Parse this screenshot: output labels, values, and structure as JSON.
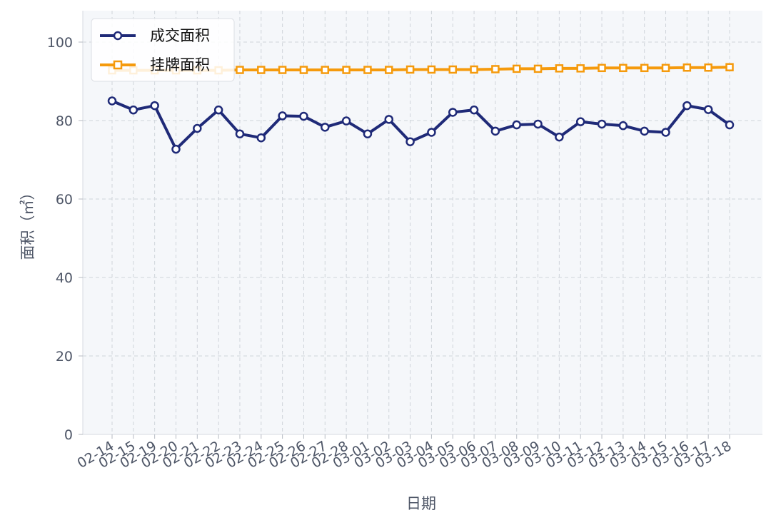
{
  "chart_data": {
    "type": "line",
    "x": [
      "02-14",
      "02-15",
      "02-19",
      "02-20",
      "02-21",
      "02-22",
      "02-23",
      "02-24",
      "02-25",
      "02-26",
      "02-27",
      "02-28",
      "03-01",
      "03-02",
      "03-03",
      "03-04",
      "03-05",
      "03-06",
      "03-07",
      "03-08",
      "03-09",
      "03-10",
      "03-11",
      "03-12",
      "03-13",
      "03-14",
      "03-15",
      "03-16",
      "03-17",
      "03-18"
    ],
    "series": [
      {
        "name": "成交面积",
        "color": "#1f2a78",
        "marker": "circle",
        "values": [
          85.0,
          82.7,
          83.8,
          72.7,
          78.0,
          82.7,
          76.6,
          75.6,
          81.2,
          81.1,
          78.3,
          79.9,
          76.6,
          80.3,
          74.6,
          77.0,
          82.1,
          82.7,
          77.3,
          78.9,
          79.1,
          75.8,
          79.7,
          79.1,
          78.7,
          77.3,
          77.0,
          83.8,
          82.8,
          78.9
        ]
      },
      {
        "name": "挂牌面积",
        "color": "#f59a0c",
        "marker": "square",
        "values": [
          92.8,
          92.8,
          92.8,
          92.8,
          92.8,
          92.8,
          92.9,
          92.9,
          92.9,
          92.9,
          92.9,
          92.9,
          92.9,
          92.9,
          93.0,
          93.0,
          93.0,
          93.0,
          93.1,
          93.2,
          93.2,
          93.3,
          93.3,
          93.4,
          93.4,
          93.4,
          93.4,
          93.5,
          93.5,
          93.6
        ]
      }
    ],
    "xlabel": "日期",
    "ylabel": "面积（㎡）",
    "ylim": [
      0,
      108
    ],
    "yticks": [
      0,
      20,
      40,
      60,
      80,
      100
    ],
    "grid": true,
    "legend_position": "top-left",
    "plot_background": "#f5f7fa"
  }
}
